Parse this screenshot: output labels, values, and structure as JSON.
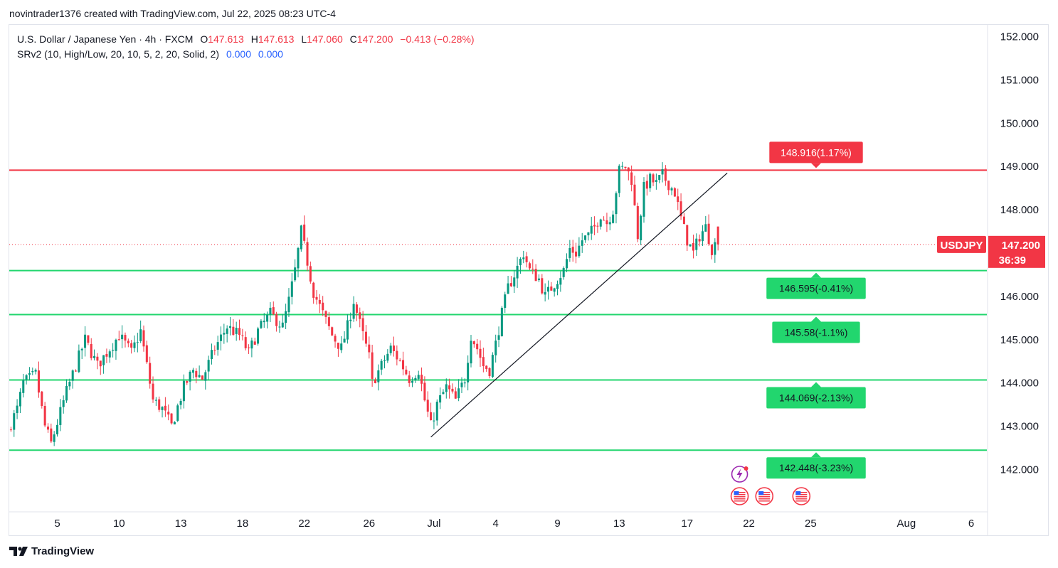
{
  "header": {
    "caption": "novintrader1376 created with TradingView.com, Jul 22, 2025 08:23 UTC-4"
  },
  "legend": {
    "symbol_desc": "U.S. Dollar / Japanese Yen · 4h · FXCM",
    "o_label": "O",
    "o_value": "147.613",
    "h_label": "H",
    "h_value": "147.613",
    "l_label": "L",
    "l_value": "147.060",
    "c_label": "C",
    "c_value": "147.200",
    "change": "−0.413 (−0.28%)",
    "indicator": "SRv2 (10, High/Low, 20, 10, 5, 2, 20, Solid, 2)",
    "ind_v1": "0.000",
    "ind_v2": "0.000"
  },
  "footer": {
    "brand": "TradingView"
  },
  "colors": {
    "up": "#089981",
    "down": "#f23645",
    "support": "#22d66e",
    "resistance": "#f23645"
  },
  "chart_data": {
    "type": "candlestick",
    "symbol": "USDJPY",
    "timeframe": "4h",
    "y_axis": {
      "range": [
        141.0,
        152.5
      ],
      "ticks": [
        "152.000",
        "151.000",
        "150.000",
        "149.000",
        "148.000",
        "147.000",
        "146.000",
        "145.000",
        "144.000",
        "143.000",
        "142.000"
      ],
      "tick_values": [
        152,
        151,
        150,
        149,
        148,
        147,
        146,
        145,
        144,
        143,
        142
      ]
    },
    "x_axis": {
      "ticks": [
        "5",
        "10",
        "13",
        "18",
        "22",
        "26",
        "Jul",
        "4",
        "9",
        "13",
        "17",
        "22",
        "25",
        "Aug",
        "6"
      ],
      "tick_bar_index": [
        15,
        35,
        55,
        75,
        95,
        116,
        137,
        157,
        177,
        197,
        219,
        239,
        259,
        290,
        311
      ]
    },
    "last_price": {
      "label": "USDJPY",
      "value": "147.200",
      "countdown": "36:39",
      "price": 147.2
    },
    "levels": [
      {
        "type": "resistance",
        "price": 148.916,
        "label": "148.916(1.17%)"
      },
      {
        "type": "support",
        "price": 146.595,
        "label": "146.595(-0.41%)"
      },
      {
        "type": "support",
        "price": 145.58,
        "label": "145.58(-1.1%)"
      },
      {
        "type": "support",
        "price": 144.069,
        "label": "144.069(-2.13%)"
      },
      {
        "type": "support",
        "price": 142.448,
        "label": "142.448(-3.23%)"
      }
    ],
    "trendline": {
      "start": {
        "bar": 136,
        "price": 142.75
      },
      "end": {
        "bar": 232,
        "price": 148.85
      }
    },
    "events": [
      {
        "bar": 236,
        "icon": "flash-icon"
      },
      {
        "bar": 236,
        "icon": "us-flag-icon"
      },
      {
        "bar": 244,
        "icon": "us-flag-icon"
      },
      {
        "bar": 256,
        "icon": "us-flag-icon"
      }
    ],
    "anchors": [
      [
        0,
        142.9
      ],
      [
        3,
        143.4
      ],
      [
        5,
        144.0
      ],
      [
        9,
        144.2
      ],
      [
        12,
        143.0
      ],
      [
        14,
        142.6
      ],
      [
        19,
        143.8
      ],
      [
        22,
        144.4
      ],
      [
        25,
        145.0
      ],
      [
        29,
        144.4
      ],
      [
        33,
        144.8
      ],
      [
        36,
        145.1
      ],
      [
        40,
        144.7
      ],
      [
        43,
        145.2
      ],
      [
        47,
        143.6
      ],
      [
        50,
        143.4
      ],
      [
        53,
        143.0
      ],
      [
        57,
        143.9
      ],
      [
        60,
        144.3
      ],
      [
        63,
        144.1
      ],
      [
        67,
        144.8
      ],
      [
        71,
        145.3
      ],
      [
        75,
        145.1
      ],
      [
        78,
        144.7
      ],
      [
        81,
        145.2
      ],
      [
        85,
        145.6
      ],
      [
        89,
        145.3
      ],
      [
        91,
        145.9
      ],
      [
        93,
        146.6
      ],
      [
        95,
        147.5
      ],
      [
        97,
        146.8
      ],
      [
        99,
        146.1
      ],
      [
        102,
        145.6
      ],
      [
        105,
        145.1
      ],
      [
        108,
        144.8
      ],
      [
        110,
        145.3
      ],
      [
        112,
        145.9
      ],
      [
        115,
        145.1
      ],
      [
        117,
        144.6
      ],
      [
        118,
        144.0
      ],
      [
        121,
        144.4
      ],
      [
        124,
        144.8
      ],
      [
        127,
        144.5
      ],
      [
        130,
        144.1
      ],
      [
        133,
        144.3
      ],
      [
        135,
        143.6
      ],
      [
        137,
        143.0
      ],
      [
        139,
        143.5
      ],
      [
        142,
        143.9
      ],
      [
        145,
        143.6
      ],
      [
        148,
        144.1
      ],
      [
        150,
        145.1
      ],
      [
        152,
        144.8
      ],
      [
        154,
        144.4
      ],
      [
        156,
        144.3
      ],
      [
        158,
        144.9
      ],
      [
        160,
        145.6
      ],
      [
        162,
        146.2
      ],
      [
        164,
        146.5
      ],
      [
        167,
        147.0
      ],
      [
        169,
        146.6
      ],
      [
        172,
        146.4
      ],
      [
        174,
        146.0
      ],
      [
        176,
        146.2
      ],
      [
        178,
        146.4
      ],
      [
        180,
        146.6
      ],
      [
        182,
        147.1
      ],
      [
        184,
        147.0
      ],
      [
        186,
        147.3
      ],
      [
        188,
        147.4
      ],
      [
        190,
        147.6
      ],
      [
        192,
        147.9
      ],
      [
        194,
        147.7
      ],
      [
        196,
        148.0
      ],
      [
        198,
        148.9
      ],
      [
        200,
        149.0
      ],
      [
        202,
        148.7
      ],
      [
        204,
        147.4
      ],
      [
        206,
        148.5
      ],
      [
        208,
        148.7
      ],
      [
        210,
        148.6
      ],
      [
        212,
        148.8
      ],
      [
        214,
        148.6
      ],
      [
        216,
        148.4
      ],
      [
        218,
        147.8
      ],
      [
        220,
        147.3
      ],
      [
        222,
        147.0
      ],
      [
        224,
        147.4
      ],
      [
        226,
        147.6
      ],
      [
        228,
        147.1
      ],
      [
        229,
        147.2
      ]
    ],
    "last_bar": 229,
    "total_bars_visible": 320
  }
}
